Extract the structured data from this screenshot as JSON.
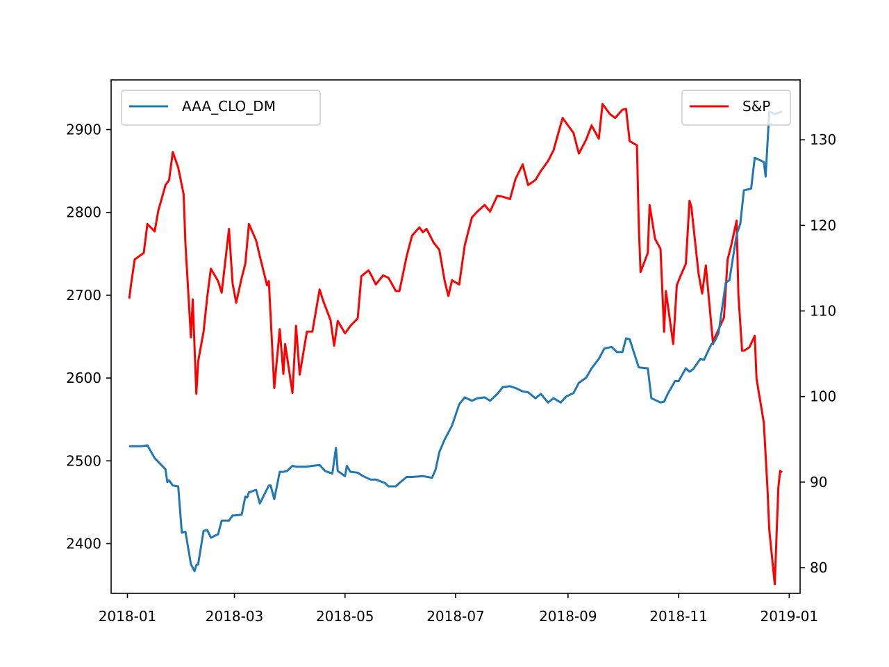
{
  "chart_data": {
    "type": "line",
    "title": "",
    "xlabel": "",
    "ylabel": "",
    "y2label": "",
    "grid": false,
    "x_ticks": [
      "2018-01",
      "2018-03",
      "2018-05",
      "2018-07",
      "2018-09",
      "2018-11",
      "2019-01"
    ],
    "y_left_ticks": [
      "2400",
      "2500",
      "2600",
      "2700",
      "2800",
      "2900"
    ],
    "y_right_ticks": [
      "80",
      "90",
      "100",
      "110",
      "120",
      "130"
    ],
    "y_left_lim": [
      2340,
      2960
    ],
    "y_right_lim": [
      77,
      137
    ],
    "x_lim": [
      "2017-12-23",
      "2019-01-07"
    ],
    "colors": {
      "AAA_CLO_DM": "#1f77b4",
      "S&P": "#ff0000"
    },
    "legends": [
      {
        "placement": "upper left",
        "label": "AAA_CLO_DM"
      },
      {
        "placement": "upper right",
        "label": "S&P"
      }
    ],
    "series": [
      {
        "name": "S&P",
        "axis": "left",
        "x": [
          "2018-01-02",
          "2018-01-03",
          "2018-01-05",
          "2018-01-08",
          "2018-01-10",
          "2018-01-12",
          "2018-01-16",
          "2018-01-18",
          "2018-01-22",
          "2018-01-24",
          "2018-01-26",
          "2018-01-29",
          "2018-02-01",
          "2018-02-02",
          "2018-02-05",
          "2018-02-06",
          "2018-02-08",
          "2018-02-09",
          "2018-02-12",
          "2018-02-14",
          "2018-02-16",
          "2018-02-20",
          "2018-02-22",
          "2018-02-26",
          "2018-02-28",
          "2018-03-02",
          "2018-03-05",
          "2018-03-07",
          "2018-03-09",
          "2018-03-13",
          "2018-03-15",
          "2018-03-19",
          "2018-03-20",
          "2018-03-23",
          "2018-03-26",
          "2018-03-28",
          "2018-03-29",
          "2018-04-02",
          "2018-04-04",
          "2018-04-06",
          "2018-04-10",
          "2018-04-13",
          "2018-04-17",
          "2018-04-19",
          "2018-04-23",
          "2018-04-25",
          "2018-04-27",
          "2018-05-01",
          "2018-05-04",
          "2018-05-08",
          "2018-05-10",
          "2018-05-14",
          "2018-05-16",
          "2018-05-18",
          "2018-05-22",
          "2018-05-25",
          "2018-05-29",
          "2018-05-31",
          "2018-06-04",
          "2018-06-07",
          "2018-06-11",
          "2018-06-13",
          "2018-06-15",
          "2018-06-19",
          "2018-06-22",
          "2018-06-25",
          "2018-06-27",
          "2018-06-29",
          "2018-07-03",
          "2018-07-06",
          "2018-07-10",
          "2018-07-13",
          "2018-07-17",
          "2018-07-20",
          "2018-07-24",
          "2018-07-27",
          "2018-07-31",
          "2018-08-03",
          "2018-08-07",
          "2018-08-10",
          "2018-08-14",
          "2018-08-17",
          "2018-08-21",
          "2018-08-24",
          "2018-08-29",
          "2018-09-04",
          "2018-09-07",
          "2018-09-11",
          "2018-09-14",
          "2018-09-18",
          "2018-09-20",
          "2018-09-24",
          "2018-09-27",
          "2018-10-01",
          "2018-10-03",
          "2018-10-05",
          "2018-10-09",
          "2018-10-10",
          "2018-10-11",
          "2018-10-15",
          "2018-10-16",
          "2018-10-19",
          "2018-10-22",
          "2018-10-24",
          "2018-10-25",
          "2018-10-29",
          "2018-10-31",
          "2018-11-02",
          "2018-11-05",
          "2018-11-07",
          "2018-11-08",
          "2018-11-12",
          "2018-11-14",
          "2018-11-16",
          "2018-11-20",
          "2018-11-21",
          "2018-11-26",
          "2018-11-28",
          "2018-11-30",
          "2018-12-03",
          "2018-12-04",
          "2018-12-06",
          "2018-12-07",
          "2018-12-10",
          "2018-12-13",
          "2018-12-14",
          "2018-12-18",
          "2018-12-20",
          "2018-12-21",
          "2018-12-24",
          "2018-12-26",
          "2018-12-27",
          "2018-12-28"
        ],
        "values": [
          2696,
          2713,
          2743,
          2748,
          2751,
          2786,
          2777,
          2802,
          2833,
          2839,
          2873,
          2854,
          2822,
          2762,
          2649,
          2695,
          2581,
          2620,
          2656,
          2698,
          2732,
          2717,
          2703,
          2780,
          2714,
          2691,
          2721,
          2738,
          2786,
          2766,
          2747,
          2712,
          2717,
          2588,
          2659,
          2605,
          2641,
          2582,
          2663,
          2604,
          2656,
          2656,
          2707,
          2693,
          2670,
          2639,
          2669,
          2654,
          2663,
          2672,
          2723,
          2730,
          2722,
          2713,
          2724,
          2721,
          2705,
          2705,
          2747,
          2772,
          2782,
          2776,
          2780,
          2763,
          2755,
          2717,
          2699,
          2718,
          2713,
          2760,
          2794,
          2801,
          2809,
          2801,
          2820,
          2819,
          2816,
          2840,
          2858,
          2833,
          2839,
          2850,
          2862,
          2875,
          2914,
          2896,
          2871,
          2888,
          2905,
          2889,
          2931,
          2919,
          2914,
          2924,
          2925,
          2886,
          2881,
          2785,
          2728,
          2751,
          2809,
          2768,
          2756,
          2656,
          2705,
          2641,
          2712,
          2723,
          2738,
          2814,
          2807,
          2726,
          2702,
          2736,
          2641,
          2649,
          2673,
          2743,
          2760,
          2790,
          2700,
          2633,
          2633,
          2637,
          2651,
          2599,
          2546,
          2467,
          2417,
          2351,
          2468,
          2488,
          2486
        ]
      },
      {
        "name": "AAA_CLO_DM",
        "axis": "right",
        "x": [
          "2018-01-02",
          "2018-01-09",
          "2018-01-12",
          "2018-01-16",
          "2018-01-22",
          "2018-01-23",
          "2018-01-24",
          "2018-01-26",
          "2018-01-29",
          "2018-01-31",
          "2018-02-02",
          "2018-02-05",
          "2018-02-07",
          "2018-02-08",
          "2018-02-09",
          "2018-02-12",
          "2018-02-14",
          "2018-02-16",
          "2018-02-20",
          "2018-02-22",
          "2018-02-23",
          "2018-02-26",
          "2018-02-28",
          "2018-03-01",
          "2018-03-05",
          "2018-03-07",
          "2018-03-08",
          "2018-03-09",
          "2018-03-13",
          "2018-03-15",
          "2018-03-20",
          "2018-03-21",
          "2018-03-23",
          "2018-03-26",
          "2018-03-28",
          "2018-03-30",
          "2018-04-02",
          "2018-04-04",
          "2018-04-06",
          "2018-04-10",
          "2018-04-13",
          "2018-04-17",
          "2018-04-20",
          "2018-04-24",
          "2018-04-26",
          "2018-04-27",
          "2018-05-01",
          "2018-05-02",
          "2018-05-04",
          "2018-05-08",
          "2018-05-11",
          "2018-05-15",
          "2018-05-18",
          "2018-05-23",
          "2018-05-25",
          "2018-05-29",
          "2018-05-31",
          "2018-06-04",
          "2018-06-07",
          "2018-06-13",
          "2018-06-18",
          "2018-06-20",
          "2018-06-22",
          "2018-06-25",
          "2018-06-27",
          "2018-06-29",
          "2018-07-03",
          "2018-07-06",
          "2018-07-10",
          "2018-07-13",
          "2018-07-17",
          "2018-07-20",
          "2018-07-24",
          "2018-07-27",
          "2018-07-31",
          "2018-08-03",
          "2018-08-07",
          "2018-08-10",
          "2018-08-14",
          "2018-08-17",
          "2018-08-21",
          "2018-08-24",
          "2018-08-28",
          "2018-08-31",
          "2018-09-04",
          "2018-09-07",
          "2018-09-11",
          "2018-09-14",
          "2018-09-18",
          "2018-09-21",
          "2018-09-25",
          "2018-09-28",
          "2018-10-01",
          "2018-10-03",
          "2018-10-05",
          "2018-10-10",
          "2018-10-15",
          "2018-10-17",
          "2018-10-22",
          "2018-10-24",
          "2018-10-26",
          "2018-10-30",
          "2018-11-01",
          "2018-11-05",
          "2018-11-07",
          "2018-11-09",
          "2018-11-13",
          "2018-11-15",
          "2018-11-19",
          "2018-11-21",
          "2018-11-23",
          "2018-11-27",
          "2018-11-29",
          "2018-12-03",
          "2018-12-05",
          "2018-12-07",
          "2018-12-11",
          "2018-12-13",
          "2018-12-18",
          "2018-12-19",
          "2018-12-21",
          "2018-12-24",
          "2018-12-28"
        ],
        "values": [
          94.2,
          94.2,
          94.3,
          92.8,
          91.5,
          90.0,
          90.2,
          89.6,
          89.5,
          84.1,
          84.2,
          80.4,
          79.6,
          80.3,
          80.4,
          84.3,
          84.4,
          83.5,
          83.9,
          85.5,
          85.5,
          85.5,
          86.1,
          86.1,
          86.2,
          88.3,
          88.2,
          88.8,
          89.1,
          87.5,
          89.6,
          89.6,
          88.0,
          91.2,
          91.2,
          91.3,
          91.9,
          91.8,
          91.8,
          91.8,
          91.9,
          92.0,
          91.3,
          91.0,
          94.0,
          91.3,
          90.7,
          91.9,
          91.2,
          91.1,
          90.7,
          90.3,
          90.3,
          89.9,
          89.5,
          89.5,
          89.9,
          90.6,
          90.6,
          90.7,
          90.5,
          91.5,
          93.5,
          95.0,
          95.8,
          96.6,
          99.1,
          99.9,
          99.5,
          99.8,
          99.9,
          99.5,
          100.3,
          101.1,
          101.2,
          101.0,
          100.6,
          100.5,
          99.8,
          100.3,
          99.3,
          99.8,
          99.3,
          100.0,
          100.4,
          101.6,
          102.2,
          103.3,
          104.4,
          105.6,
          105.8,
          105.2,
          105.2,
          106.8,
          106.7,
          103.4,
          103.3,
          99.8,
          99.3,
          99.4,
          100.3,
          101.8,
          101.8,
          103.3,
          102.9,
          103.2,
          104.4,
          104.3,
          106.1,
          106.5,
          107.4,
          113.3,
          113.6,
          118.9,
          120.2,
          124.1,
          124.3,
          127.9,
          127.4,
          125.7,
          133.3,
          133.0,
          133.3
        ]
      }
    ]
  }
}
